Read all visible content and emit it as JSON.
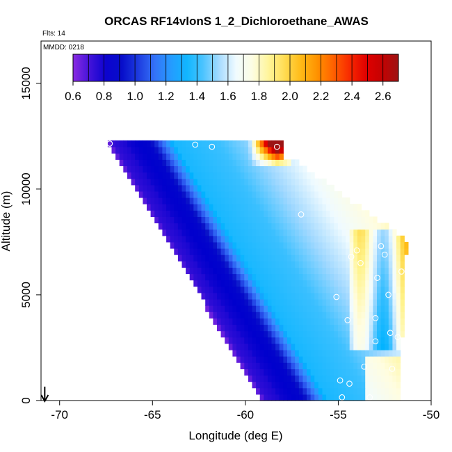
{
  "chart_data": {
    "type": "heatmap",
    "title": "ORCAS RF14vlonS 1_2_Dichloroethane_AWAS",
    "subtitle_flights": "Flts: 14",
    "subtitle_date": "MMDD: 0218",
    "xlabel": "Longitude (deg E)",
    "ylabel": "Altitude (m)",
    "xlim": [
      -71,
      -50
    ],
    "ylim": [
      0,
      17000
    ],
    "xticks": [
      -70,
      -65,
      -60,
      -55,
      -50
    ],
    "xtick_labels": [
      "-70",
      "-65",
      "-60",
      "-55",
      "-50"
    ],
    "yticks": [
      0,
      5000,
      10000,
      15000
    ],
    "ytick_labels": [
      "0",
      "5000",
      "10000",
      "15000"
    ],
    "colorbar": {
      "range": [
        0.6,
        2.7
      ],
      "ticks": [
        0.6,
        0.8,
        1.0,
        1.2,
        1.4,
        1.6,
        1.8,
        2.0,
        2.2,
        2.4,
        2.6
      ],
      "tick_labels": [
        "0.6",
        "0.8",
        "1.0",
        "1.2",
        "1.4",
        "1.6",
        "1.8",
        "2.0",
        "2.2",
        "2.4",
        "2.6"
      ],
      "colors": [
        "#8a2be2",
        "#3b10d8",
        "#0000cd",
        "#0a14c8",
        "#2a55ee",
        "#3d8cff",
        "#00b2ff",
        "#38bfff",
        "#a0d8ff",
        "#f0fbff",
        "#fffde0",
        "#fff38a",
        "#ffd23a",
        "#ffaa00",
        "#ff7a00",
        "#ff3a00",
        "#e60000",
        "#c80000",
        "#9c1414"
      ]
    },
    "flight_track_marker_x": -70.8,
    "samples": [
      {
        "lon": -67.3,
        "alt": 12150
      },
      {
        "lon": -62.7,
        "alt": 12100
      },
      {
        "lon": -61.8,
        "alt": 12000
      },
      {
        "lon": -58.3,
        "alt": 12000
      },
      {
        "lon": -57.0,
        "alt": 8800
      },
      {
        "lon": -54.0,
        "alt": 7100
      },
      {
        "lon": -54.3,
        "alt": 6800
      },
      {
        "lon": -53.8,
        "alt": 6500
      },
      {
        "lon": -52.7,
        "alt": 7300
      },
      {
        "lon": -52.5,
        "alt": 6900
      },
      {
        "lon": -51.6,
        "alt": 6100
      },
      {
        "lon": -52.9,
        "alt": 5800
      },
      {
        "lon": -55.1,
        "alt": 4900
      },
      {
        "lon": -52.3,
        "alt": 5000
      },
      {
        "lon": -54.5,
        "alt": 3800
      },
      {
        "lon": -53.0,
        "alt": 3900
      },
      {
        "lon": -52.2,
        "alt": 3200
      },
      {
        "lon": -51.8,
        "alt": 3000
      },
      {
        "lon": -53.0,
        "alt": 2800
      },
      {
        "lon": -53.6,
        "alt": 1600
      },
      {
        "lon": -52.1,
        "alt": 1500
      },
      {
        "lon": -54.9,
        "alt": 950
      },
      {
        "lon": -54.4,
        "alt": 800
      },
      {
        "lon": -54.8,
        "alt": 150
      },
      {
        "lon": -53.3,
        "alt": 150
      }
    ]
  }
}
